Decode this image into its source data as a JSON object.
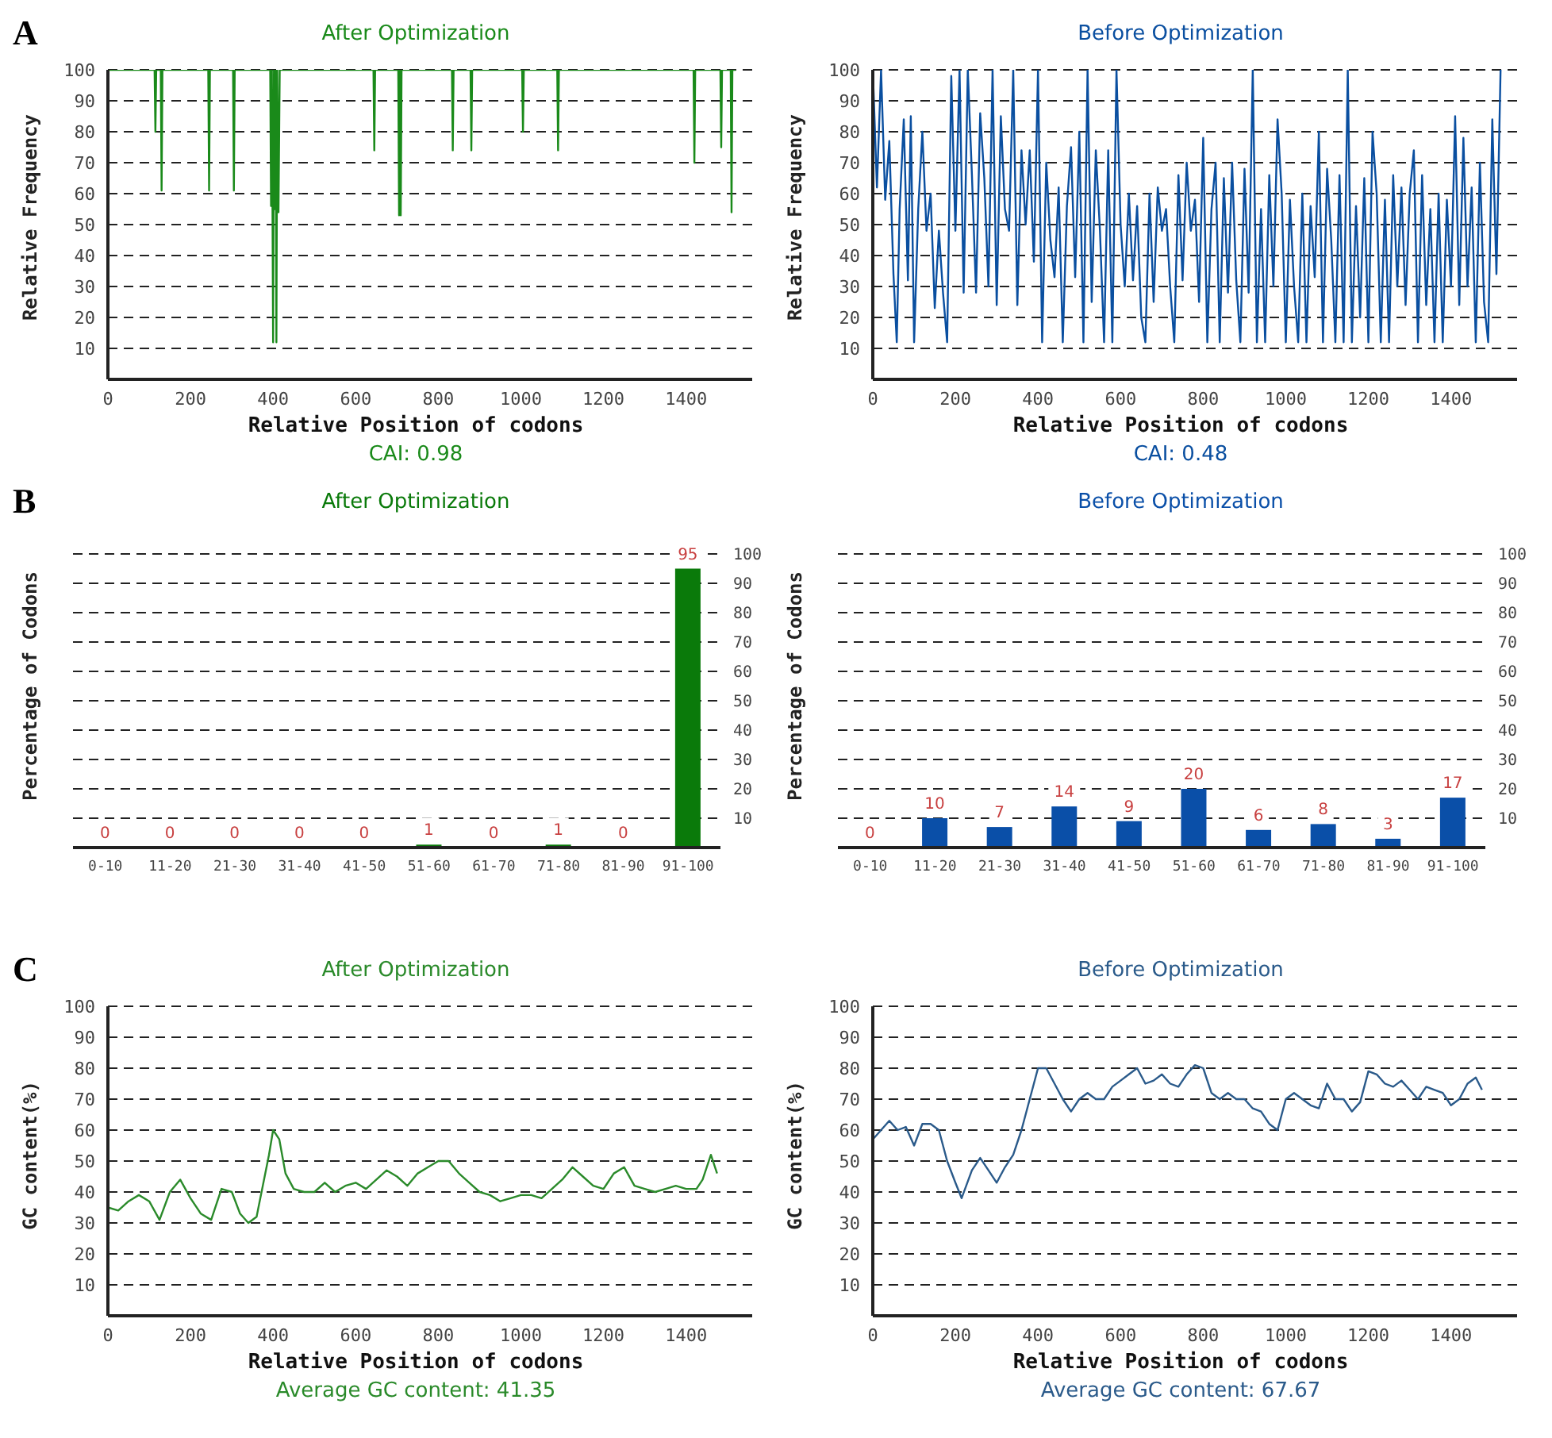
{
  "chart_data": [
    {
      "type": "line",
      "title": "After Optimization",
      "xlabel": "Relative Position of codons",
      "ylabel": "Relative Frequency",
      "annotations": [
        "A",
        "CAI: 0.98"
      ],
      "xlim": [
        0,
        1560
      ],
      "xticks": [
        0,
        200,
        400,
        600,
        800,
        1000,
        1200,
        1400
      ],
      "ylim": [
        0,
        100
      ],
      "yticks": [
        10,
        20,
        30,
        40,
        50,
        60,
        70,
        80,
        90,
        100
      ],
      "grid": "y",
      "series": [
        {
          "color": "#1a8a1a",
          "x": [
            0,
            113,
            115,
            117,
            128,
            130,
            132,
            243,
            245,
            247,
            303,
            305,
            307,
            393,
            395,
            397,
            400,
            402,
            404,
            406,
            408,
            410,
            413,
            416,
            643,
            645,
            647,
            703,
            705,
            707,
            709,
            711,
            833,
            835,
            837,
            878,
            880,
            882,
            1003,
            1005,
            1007,
            1088,
            1090,
            1092,
            1418,
            1420,
            1422,
            1483,
            1485,
            1487,
            1508,
            1510,
            1512,
            1520
          ],
          "values": [
            100,
            100,
            80,
            100,
            100,
            61,
            100,
            100,
            61,
            100,
            100,
            61,
            100,
            100,
            56,
            100,
            12,
            100,
            55,
            100,
            12,
            100,
            54,
            100,
            100,
            74,
            100,
            100,
            53,
            100,
            53,
            100,
            100,
            74,
            100,
            100,
            74,
            100,
            100,
            80,
            100,
            100,
            74,
            100,
            100,
            70,
            100,
            100,
            75,
            100,
            100,
            54,
            100,
            100
          ]
        }
      ]
    },
    {
      "type": "line",
      "title": "Before Optimization",
      "xlabel": "Relative Position of codons",
      "ylabel": "Relative Frequency",
      "annotations": [
        "CAI: 0.48"
      ],
      "xlim": [
        0,
        1560
      ],
      "xticks": [
        0,
        200,
        400,
        600,
        800,
        1000,
        1200,
        1400
      ],
      "ylim": [
        0,
        100
      ],
      "yticks": [
        10,
        20,
        30,
        40,
        50,
        60,
        70,
        80,
        90,
        100
      ],
      "grid": "y",
      "series": [
        {
          "color": "#0a4fa0",
          "x": [
            0,
            10,
            20,
            30,
            40,
            50,
            58,
            65,
            75,
            85,
            92,
            100,
            110,
            120,
            130,
            140,
            150,
            160,
            170,
            180,
            190,
            200,
            210,
            220,
            230,
            240,
            250,
            260,
            270,
            280,
            290,
            300,
            310,
            320,
            330,
            340,
            350,
            360,
            370,
            380,
            390,
            400,
            410,
            420,
            430,
            440,
            450,
            460,
            470,
            480,
            490,
            500,
            510,
            520,
            530,
            540,
            550,
            560,
            570,
            580,
            590,
            600,
            610,
            620,
            630,
            640,
            650,
            660,
            670,
            680,
            690,
            700,
            710,
            720,
            730,
            740,
            750,
            760,
            770,
            780,
            790,
            800,
            810,
            820,
            830,
            840,
            850,
            860,
            870,
            880,
            890,
            900,
            910,
            920,
            930,
            940,
            950,
            960,
            970,
            980,
            990,
            1000,
            1010,
            1020,
            1030,
            1040,
            1050,
            1060,
            1070,
            1080,
            1090,
            1100,
            1110,
            1120,
            1130,
            1140,
            1150,
            1160,
            1170,
            1180,
            1190,
            1200,
            1210,
            1220,
            1230,
            1240,
            1250,
            1260,
            1270,
            1280,
            1290,
            1300,
            1310,
            1320,
            1330,
            1340,
            1350,
            1360,
            1370,
            1380,
            1390,
            1400,
            1410,
            1420,
            1430,
            1440,
            1450,
            1460,
            1470,
            1480,
            1490,
            1500,
            1510,
            1520
          ],
          "values": [
            100,
            62,
            100,
            58,
            77,
            34,
            12,
            55,
            84,
            32,
            85,
            12,
            55,
            80,
            48,
            60,
            23,
            48,
            28,
            12,
            98,
            48,
            100,
            28,
            100,
            66,
            28,
            86,
            65,
            30,
            100,
            24,
            85,
            55,
            48,
            100,
            24,
            74,
            50,
            74,
            38,
            100,
            12,
            70,
            45,
            33,
            62,
            12,
            56,
            75,
            33,
            80,
            12,
            100,
            25,
            74,
            48,
            12,
            74,
            12,
            100,
            50,
            30,
            60,
            32,
            56,
            20,
            12,
            60,
            25,
            62,
            48,
            55,
            30,
            12,
            66,
            32,
            70,
            48,
            58,
            25,
            78,
            12,
            55,
            70,
            12,
            65,
            28,
            70,
            32,
            12,
            68,
            28,
            100,
            12,
            55,
            12,
            66,
            30,
            84,
            60,
            12,
            58,
            30,
            12,
            60,
            12,
            56,
            33,
            80,
            12,
            68,
            45,
            12,
            66,
            12,
            100,
            12,
            56,
            20,
            65,
            12,
            80,
            60,
            12,
            58,
            12,
            66,
            30,
            62,
            24,
            60,
            74,
            12,
            66,
            24,
            55,
            12,
            60,
            12,
            58,
            30,
            85,
            24,
            78,
            30,
            62,
            12,
            70,
            25,
            12,
            84,
            34,
            100
          ]
        }
      ]
    },
    {
      "type": "bar",
      "title": "After Optimization",
      "ylabel": "Percentage of Codons",
      "annotations": [
        "B"
      ],
      "categories": [
        "0-10",
        "11-20",
        "21-30",
        "31-40",
        "41-50",
        "51-60",
        "61-70",
        "71-80",
        "81-90",
        "91-100"
      ],
      "ylim": [
        0,
        100
      ],
      "yticks": [
        10,
        20,
        30,
        40,
        50,
        60,
        70,
        80,
        90,
        100
      ],
      "grid": "y",
      "data_labels": true,
      "series": [
        {
          "color": "#0a7a0a",
          "values": [
            0,
            0,
            0,
            0,
            0,
            1,
            0,
            1,
            0,
            95
          ]
        }
      ]
    },
    {
      "type": "bar",
      "title": "Before Optimization",
      "ylabel": "Percentage of Codons",
      "categories": [
        "0-10",
        "11-20",
        "21-30",
        "31-40",
        "41-50",
        "51-60",
        "61-70",
        "71-80",
        "81-90",
        "91-100"
      ],
      "ylim": [
        0,
        100
      ],
      "yticks": [
        10,
        20,
        30,
        40,
        50,
        60,
        70,
        80,
        90,
        100
      ],
      "grid": "y",
      "data_labels": true,
      "series": [
        {
          "color": "#0a4fa8",
          "values": [
            0,
            10,
            7,
            14,
            9,
            20,
            6,
            8,
            3,
            17
          ]
        }
      ]
    },
    {
      "type": "line",
      "title": "After Optimization",
      "xlabel": "Relative Position of codons",
      "ylabel": "GC content(%)",
      "annotations": [
        "C",
        "Average GC content: 41.35"
      ],
      "xlim": [
        0,
        1560
      ],
      "xticks": [
        0,
        200,
        400,
        600,
        800,
        1000,
        1200,
        1400
      ],
      "ylim": [
        0,
        100
      ],
      "yticks": [
        10,
        20,
        30,
        40,
        50,
        60,
        70,
        80,
        90,
        100
      ],
      "grid": "y",
      "series": [
        {
          "color": "#2a8a2a",
          "x": [
            0,
            25,
            50,
            75,
            100,
            125,
            150,
            175,
            200,
            225,
            250,
            275,
            300,
            320,
            340,
            360,
            375,
            390,
            400,
            415,
            430,
            450,
            475,
            500,
            525,
            550,
            575,
            600,
            625,
            650,
            675,
            700,
            725,
            750,
            775,
            800,
            825,
            850,
            875,
            900,
            925,
            950,
            975,
            1000,
            1025,
            1050,
            1075,
            1100,
            1125,
            1150,
            1175,
            1200,
            1225,
            1250,
            1275,
            1300,
            1325,
            1350,
            1375,
            1400,
            1425,
            1440,
            1460,
            1475
          ],
          "values": [
            35,
            34,
            37,
            39,
            37,
            31,
            40,
            44,
            38,
            33,
            31,
            41,
            40,
            33,
            30,
            32,
            42,
            52,
            60,
            57,
            46,
            41,
            40,
            40,
            43,
            40,
            42,
            43,
            41,
            44,
            47,
            45,
            42,
            46,
            48,
            50,
            50,
            46,
            43,
            40,
            39,
            37,
            38,
            39,
            39,
            38,
            41,
            44,
            48,
            45,
            42,
            41,
            46,
            48,
            42,
            41,
            40,
            41,
            42,
            41,
            41,
            44,
            52,
            46
          ]
        }
      ]
    },
    {
      "type": "line",
      "title": "Before Optimization",
      "xlabel": "Relative Position of codons",
      "ylabel": "GC content(%)",
      "annotations": [
        "Average GC content: 67.67"
      ],
      "xlim": [
        0,
        1560
      ],
      "xticks": [
        0,
        200,
        400,
        600,
        800,
        1000,
        1200,
        1400
      ],
      "ylim": [
        0,
        100
      ],
      "yticks": [
        10,
        20,
        30,
        40,
        50,
        60,
        70,
        80,
        90,
        100
      ],
      "grid": "y",
      "series": [
        {
          "color": "#2a5a8a",
          "x": [
            0,
            20,
            40,
            60,
            80,
            100,
            120,
            140,
            160,
            180,
            200,
            215,
            240,
            260,
            280,
            300,
            320,
            340,
            360,
            380,
            400,
            420,
            440,
            460,
            480,
            500,
            520,
            540,
            560,
            580,
            600,
            620,
            640,
            660,
            680,
            700,
            720,
            740,
            760,
            780,
            800,
            820,
            840,
            860,
            880,
            900,
            920,
            940,
            960,
            980,
            1000,
            1020,
            1040,
            1060,
            1080,
            1100,
            1120,
            1140,
            1160,
            1180,
            1200,
            1220,
            1240,
            1260,
            1280,
            1300,
            1320,
            1340,
            1360,
            1380,
            1400,
            1420,
            1440,
            1460,
            1475
          ],
          "values": [
            57,
            60,
            63,
            60,
            61,
            55,
            62,
            62,
            60,
            50,
            43,
            38,
            47,
            51,
            47,
            43,
            48,
            52,
            60,
            70,
            80,
            80,
            75,
            70,
            66,
            70,
            72,
            70,
            70,
            74,
            76,
            78,
            80,
            75,
            76,
            78,
            75,
            74,
            78,
            81,
            80,
            72,
            70,
            72,
            70,
            70,
            67,
            66,
            62,
            60,
            70,
            72,
            70,
            68,
            67,
            75,
            70,
            70,
            66,
            69,
            79,
            78,
            75,
            74,
            76,
            73,
            70,
            74,
            73,
            72,
            68,
            70,
            75,
            77,
            73
          ]
        }
      ]
    }
  ]
}
